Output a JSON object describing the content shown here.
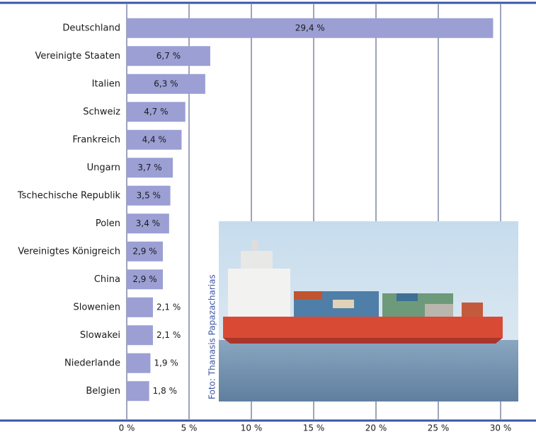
{
  "chart_data": {
    "type": "bar",
    "orientation": "horizontal",
    "categories": [
      "Deutschland",
      "Vereinigte Staaten",
      "Italien",
      "Schweiz",
      "Frankreich",
      "Ungarn",
      "Tschechische Republik",
      "Polen",
      "Vereinigtes Königreich",
      "China",
      "Slowenien",
      "Slowakei",
      "Niederlande",
      "Belgien"
    ],
    "values": [
      29.4,
      6.7,
      6.3,
      4.7,
      4.4,
      3.7,
      3.5,
      3.4,
      2.9,
      2.9,
      2.1,
      2.1,
      1.9,
      1.8
    ],
    "value_labels": [
      "29,4 %",
      "6,7 %",
      "6,3 %",
      "4,7 %",
      "4,4 %",
      "3,7 %",
      "3,5 %",
      "3,4 %",
      "2,9 %",
      "2,9 %",
      "2,1 %",
      "2,1 %",
      "1,9 %",
      "1,8 %"
    ],
    "color": "#9b9fd4",
    "xlim": [
      0,
      31.3
    ],
    "xticks": [
      {
        "value": 0,
        "label": "0 %"
      },
      {
        "value": 5,
        "label": "5 %"
      },
      {
        "value": 10,
        "label": "10 %"
      },
      {
        "value": 15,
        "label": "15 %"
      },
      {
        "value": 20,
        "label": "20 %"
      },
      {
        "value": 25,
        "label": "25 %"
      },
      {
        "value": 30,
        "label": "30 %"
      }
    ],
    "grid": true,
    "photo_credit": "Foto: Thanasis Papazacharias"
  }
}
